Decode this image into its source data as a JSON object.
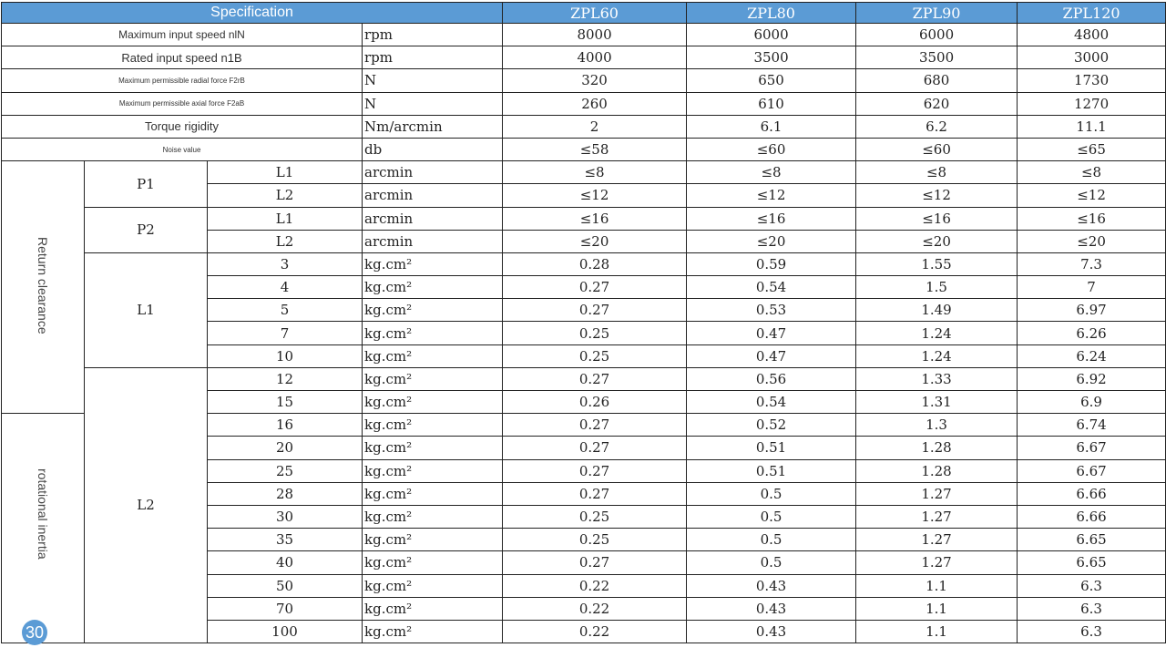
{
  "header": {
    "spec_label": "Specification",
    "models": [
      "ZPL60",
      "ZPL80",
      "ZPL90",
      "ZPL120"
    ]
  },
  "top_rows": [
    {
      "label": "Maximum input speed nlN",
      "unit": "rpm",
      "values": [
        "8000",
        "6000",
        "6000",
        "4800"
      ],
      "size": "n"
    },
    {
      "label": "Rated input speed n1B",
      "unit": "rpm",
      "values": [
        "4000",
        "3500",
        "3500",
        "3000"
      ],
      "size": "md"
    },
    {
      "label": "Maximum permissible radial force F2rB",
      "unit": "N",
      "values": [
        "320",
        "650",
        "680",
        "1730"
      ],
      "size": "sm"
    },
    {
      "label": "Maximum permissible axial force F2aB",
      "unit": "N",
      "values": [
        "260",
        "610",
        "620",
        "1270"
      ],
      "size": "sm"
    },
    {
      "label": "Torque rigidity",
      "unit": "Nm/arcmin",
      "values": [
        "2",
        "6.1",
        "6.2",
        "11.1"
      ],
      "size": "md"
    },
    {
      "label": "Noise value",
      "unit": "db",
      "values": [
        "≤58",
        "≤60",
        "≤60",
        "≤65"
      ],
      "size": "sm"
    }
  ],
  "sections": {
    "return_clearance": "Return clearance",
    "rotational_inertia": "rotational inertia"
  },
  "clearance_groups": [
    {
      "name": "P1",
      "rows": [
        {
          "param": "L1",
          "unit": "arcmin",
          "values": [
            "≤8",
            "≤8",
            "≤8",
            "≤8"
          ]
        },
        {
          "param": "L2",
          "unit": "arcmin",
          "values": [
            "≤12",
            "≤12",
            "≤12",
            "≤12"
          ]
        }
      ]
    },
    {
      "name": "P2",
      "rows": [
        {
          "param": "L1",
          "unit": "arcmin",
          "values": [
            "≤16",
            "≤16",
            "≤16",
            "≤16"
          ]
        },
        {
          "param": "L2",
          "unit": "arcmin",
          "values": [
            "≤20",
            "≤20",
            "≤20",
            "≤20"
          ]
        }
      ]
    }
  ],
  "inertia_groups": [
    {
      "name": "L1",
      "rows": [
        {
          "param": "3",
          "unit": "kg.cm²",
          "values": [
            "0.28",
            "0.59",
            "1.55",
            "7.3"
          ]
        },
        {
          "param": "4",
          "unit": "kg.cm²",
          "values": [
            "0.27",
            "0.54",
            "1.5",
            "7"
          ]
        },
        {
          "param": "5",
          "unit": "kg.cm²",
          "values": [
            "0.27",
            "0.53",
            "1.49",
            "6.97"
          ]
        },
        {
          "param": "7",
          "unit": "kg.cm²",
          "values": [
            "0.25",
            "0.47",
            "1.24",
            "6.26"
          ]
        },
        {
          "param": "10",
          "unit": "kg.cm²",
          "values": [
            "0.25",
            "0.47",
            "1.24",
            "6.24"
          ]
        }
      ]
    },
    {
      "name": "L2",
      "rows": [
        {
          "param": "12",
          "unit": "kg.cm²",
          "values": [
            "0.27",
            "0.56",
            "1.33",
            "6.92"
          ]
        },
        {
          "param": "15",
          "unit": "kg.cm²",
          "values": [
            "0.26",
            "0.54",
            "1.31",
            "6.9"
          ]
        },
        {
          "param": "16",
          "unit": "kg.cm²",
          "values": [
            "0.27",
            "0.52",
            "1.3",
            "6.74"
          ]
        },
        {
          "param": "20",
          "unit": "kg.cm²",
          "values": [
            "0.27",
            "0.51",
            "1.28",
            "6.67"
          ]
        },
        {
          "param": "25",
          "unit": "kg.cm²",
          "values": [
            "0.27",
            "0.51",
            "1.28",
            "6.67"
          ]
        },
        {
          "param": "28",
          "unit": "kg.cm²",
          "values": [
            "0.27",
            "0.5",
            "1.27",
            "6.66"
          ]
        },
        {
          "param": "30",
          "unit": "kg.cm²",
          "values": [
            "0.25",
            "0.5",
            "1.27",
            "6.66"
          ]
        },
        {
          "param": "35",
          "unit": "kg.cm²",
          "values": [
            "0.25",
            "0.5",
            "1.27",
            "6.65"
          ]
        },
        {
          "param": "40",
          "unit": "kg.cm²",
          "values": [
            "0.27",
            "0.5",
            "1.27",
            "6.65"
          ]
        },
        {
          "param": "50",
          "unit": "kg.cm²",
          "values": [
            "0.22",
            "0.43",
            "1.1",
            "6.3"
          ]
        },
        {
          "param": "70",
          "unit": "kg.cm²",
          "values": [
            "0.22",
            "0.43",
            "1.1",
            "6.3"
          ]
        },
        {
          "param": "100",
          "unit": "kg.cm²",
          "values": [
            "0.22",
            "0.43",
            "1.1",
            "6.3"
          ]
        }
      ]
    }
  ],
  "page_number": "30",
  "colors": {
    "header_bg": "#5b9bd5",
    "badge": "#5b9bd5"
  }
}
